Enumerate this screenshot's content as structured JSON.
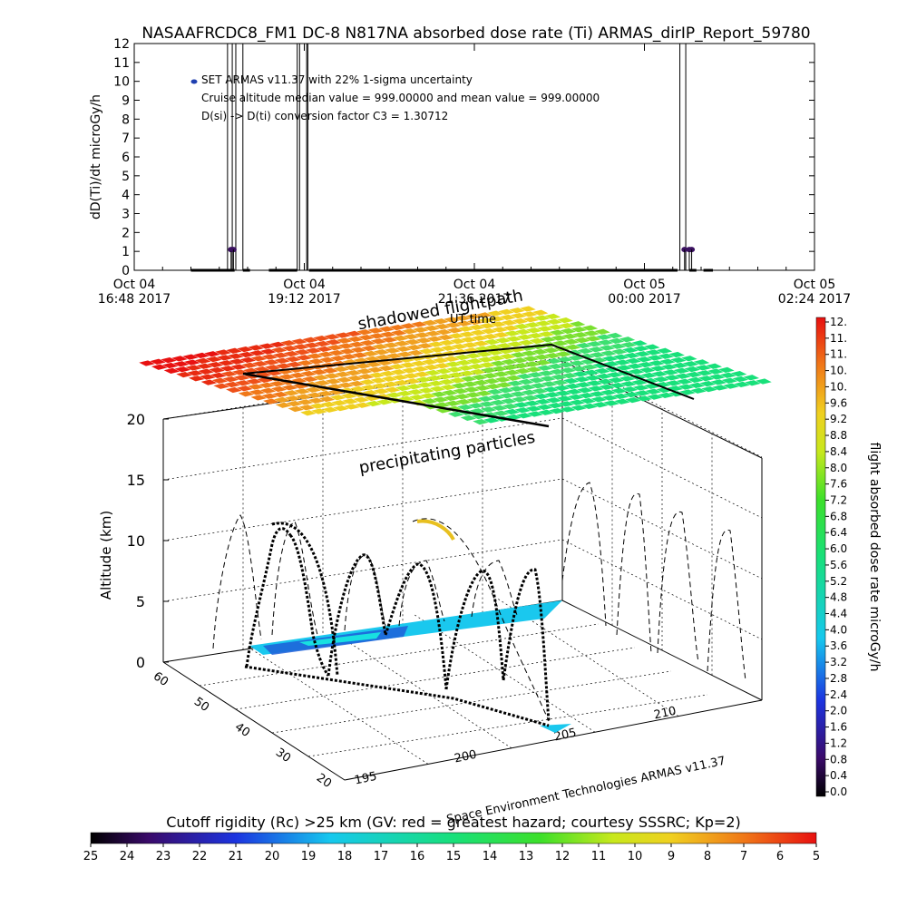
{
  "colors": {
    "bg": "#ffffff",
    "ink": "#000000",
    "marker": "#1f3fb0",
    "purple_marker": "#3a1060",
    "ocean_cyan": "#1ac8ee",
    "ocean_blue": "#1f5fd8",
    "grid": "#000000"
  },
  "chart_data": [
    {
      "type": "scatter",
      "title": "NASAAFRCDC8_FM1  DC-8    N817NA absorbed dose rate (Ti) ARMAS_dirIP_Report_59780",
      "ylabel": "dD(Ti)/dt microGy/h",
      "xlabel": "UT time",
      "ylim": [
        0,
        12
      ],
      "yticks": [
        "0",
        "1",
        "2",
        "3",
        "4",
        "5",
        "6",
        "7",
        "8",
        "9",
        "10",
        "11",
        "12"
      ],
      "xticks": [
        {
          "top": "Oct 04",
          "bottom": "16:48 2017",
          "t": 0
        },
        {
          "top": "Oct 04",
          "bottom": "19:12 2017",
          "t": 144
        },
        {
          "top": "Oct 04",
          "bottom": "21:36 2017",
          "t": 288
        },
        {
          "top": "Oct 05",
          "bottom": "00:00 2017",
          "t": 432
        },
        {
          "top": "Oct 05",
          "bottom": "02:24 2017",
          "t": 576
        }
      ],
      "xlim_minutes": [
        0,
        576
      ],
      "legend": [
        {
          "text": "SET ARMAS v11.37 with 22% 1-sigma uncertainty",
          "marker": true
        },
        {
          "text": "Cruise altitude median value = 999.00000 and mean value = 999.00000",
          "marker": false
        },
        {
          "text": "D(si) -> D(ti) conversion factor C3 = 1.30712",
          "marker": false
        }
      ],
      "baseline_segments": [
        [
          48,
          85
        ],
        [
          92,
          98
        ],
        [
          114,
          138
        ],
        [
          148,
          460
        ],
        [
          470,
          476
        ],
        [
          482,
          490
        ]
      ],
      "points": [
        {
          "t": 82,
          "v": 1.1
        },
        {
          "t": 84,
          "v": 1.1
        },
        {
          "t": 466,
          "v": 1.1
        },
        {
          "t": 470,
          "v": 1.1
        },
        {
          "t": 472,
          "v": 1.1
        }
      ],
      "spikes": [
        {
          "t1": 79,
          "t2": 83
        },
        {
          "t1": 86,
          "t2": 92
        },
        {
          "t1": 138,
          "t2": 140
        },
        {
          "t1": 146,
          "t2": 147
        },
        {
          "t1": 462,
          "t2": 467
        }
      ]
    },
    {
      "type": "heatmap",
      "description_labels": {
        "ylabel": "Altitude (km)",
        "shadow_label": "shadowed flightpath",
        "precip_label": "precipitating particles",
        "ut_label": "UT time",
        "credit": "Space Environment Technologies ARMAS v11.37"
      },
      "altitude_ticks": [
        "0",
        "5",
        "10",
        "15",
        "20"
      ],
      "latitude_ticks": [
        "60",
        "50",
        "40",
        "30",
        "20"
      ],
      "longitude_ticks": [
        "195",
        "200",
        "205",
        "210"
      ],
      "dose_colorbar": {
        "label": "flight absorbed dose rate microGy/h",
        "range": [
          0,
          12
        ],
        "ticks": [
          "12.",
          "11.",
          "11.",
          "10.",
          "10.",
          "9.6",
          "9.2",
          "8.8",
          "8.4",
          "8.0",
          "7.6",
          "7.2",
          "6.8",
          "6.4",
          "6.0",
          "5.6",
          "5.2",
          "4.8",
          "4.4",
          "4.0",
          "3.6",
          "3.2",
          "2.8",
          "2.4",
          "2.0",
          "1.6",
          "1.2",
          "0.8",
          "0.4",
          "0.0"
        ]
      },
      "rigidity_colorbar": {
        "label": "Cutoff rigidity (Rc) >25 km (GV: red = greatest hazard; courtesy SSSRC; Kp=2)",
        "range": [
          25,
          5
        ],
        "ticks": [
          "25",
          "24",
          "23",
          "22",
          "21",
          "20",
          "19",
          "18",
          "17",
          "16",
          "15",
          "14",
          "13",
          "12",
          "11",
          "10",
          "9",
          "8",
          "7",
          "6",
          "5"
        ]
      }
    }
  ]
}
